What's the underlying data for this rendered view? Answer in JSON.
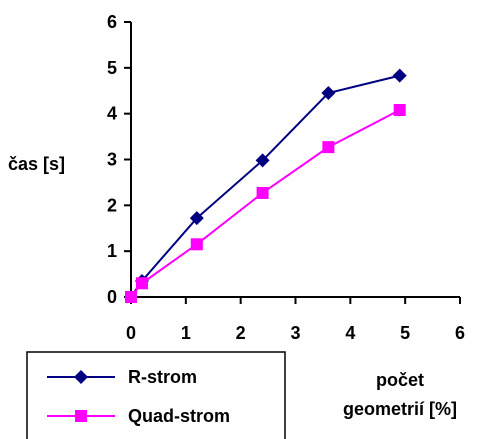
{
  "chart_data": {
    "type": "line",
    "title": "",
    "xlabel_lines": [
      "počet",
      "geometrií [%]"
    ],
    "ylabel": "čas [s]",
    "xlim": [
      0,
      6
    ],
    "ylim": [
      0,
      6
    ],
    "xticks": [
      0,
      1,
      2,
      3,
      4,
      5,
      6
    ],
    "yticks": [
      0,
      1,
      2,
      3,
      4,
      5,
      6
    ],
    "grid": false,
    "legend_position": "bottom-left",
    "series": [
      {
        "name": "R-strom",
        "color": "#000080",
        "marker": "diamond",
        "x": [
          0,
          0.2,
          1.2,
          2.4,
          3.6,
          4.9
        ],
        "y": [
          0,
          0.35,
          1.72,
          2.98,
          4.45,
          4.83
        ]
      },
      {
        "name": "Quad-strom",
        "color": "#FF00FF",
        "marker": "square",
        "x": [
          0,
          0.2,
          1.2,
          2.4,
          3.6,
          4.9
        ],
        "y": [
          0,
          0.3,
          1.15,
          2.27,
          3.27,
          4.08
        ]
      }
    ]
  }
}
